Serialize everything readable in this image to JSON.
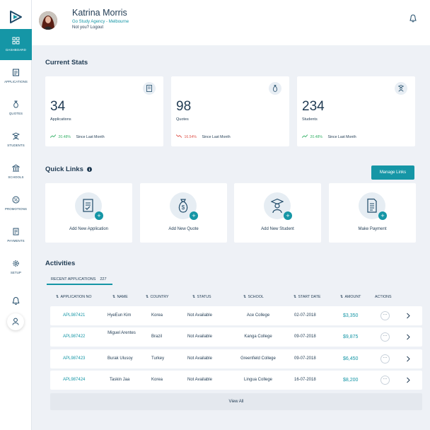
{
  "sidebar": {
    "items": [
      {
        "label": "DASHBOARD",
        "icon": "grid-icon"
      },
      {
        "label": "APPLICATIONS",
        "icon": "document-icon"
      },
      {
        "label": "QUOTES",
        "icon": "money-bag-icon"
      },
      {
        "label": "STUDENTS",
        "icon": "student-icon"
      },
      {
        "label": "SCHOOLS",
        "icon": "school-icon"
      },
      {
        "label": "PROMOTIONS",
        "icon": "percent-icon"
      },
      {
        "label": "PAYMENTS",
        "icon": "invoice-icon"
      },
      {
        "label": "SETUP",
        "icon": "gear-icon"
      }
    ]
  },
  "header": {
    "user_name": "Katrina Morris",
    "agency": "Go Study Agency - Melbourne",
    "logout_text": "Not you? Logout"
  },
  "stats": {
    "title": "Current Stats",
    "cards": [
      {
        "value": "34",
        "label": "Applications",
        "change": "20.48%",
        "since": "Since Last Month",
        "trend": "up",
        "color": "#3bb36b"
      },
      {
        "value": "98",
        "label": "Quotes",
        "change": "16.54%",
        "since": "Since Last Month",
        "trend": "down",
        "color": "#e0574f"
      },
      {
        "value": "234",
        "label": "Students",
        "change": "20.48%",
        "since": "Since Last Month",
        "trend": "up",
        "color": "#3bb36b"
      }
    ]
  },
  "quick_links": {
    "title": "Quick Links",
    "manage_label": "Manage Links",
    "items": [
      {
        "label": "Add New Application",
        "icon": "application-icon"
      },
      {
        "label": "Add New Quote",
        "icon": "quote-icon"
      },
      {
        "label": "Add New Student",
        "icon": "student-icon"
      },
      {
        "label": "Make Payment",
        "icon": "payment-icon"
      }
    ]
  },
  "activities": {
    "title": "Activities",
    "tab_label": "RECENT APPLICATIONS",
    "tab_count": "227",
    "columns": [
      "APPLICATION NO",
      "NAME",
      "COUNTRY",
      "STATUS",
      "SCHOOL",
      "START DATE",
      "AMOUNT",
      "ACTIONS"
    ],
    "rows": [
      {
        "app_no": "APL987421",
        "name": "HyeEun Kim",
        "country": "Korea",
        "status": "Not Available",
        "school": "Ace College",
        "start_date": "02-07-2018",
        "amount": "$3,350"
      },
      {
        "app_no": "APL987422",
        "name": "Miguel Arentes",
        "country": "Brazil",
        "status": "Not Available",
        "school": "Kanga College",
        "start_date": "09-07-2018",
        "amount": "$9,875"
      },
      {
        "app_no": "APL987423",
        "name": "Burak Ulusoy",
        "country": "Turkey",
        "status": "Not Available",
        "school": "Greenfield College",
        "start_date": "09-07-2018",
        "amount": "$6,450"
      },
      {
        "app_no": "APL987424",
        "name": "Taskin Jaa",
        "country": "Korea",
        "status": "Not Available",
        "school": "Lingua College",
        "start_date": "16-07-2018",
        "amount": "$8,200"
      }
    ],
    "dots_label": "···",
    "view_all_label": "View All"
  },
  "colors": {
    "accent": "#1596a6",
    "text": "#1f3a52",
    "background": "#eef1f6"
  }
}
